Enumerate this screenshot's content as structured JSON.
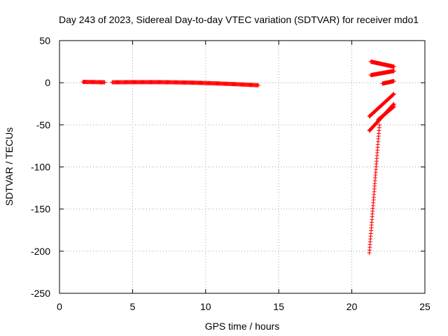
{
  "chart_data": {
    "type": "scatter",
    "title": "Day 243 of 2023, Sidereal Day-to-day VTEC variation (SDTVAR) for receiver mdo1",
    "xlabel": "GPS time / hours",
    "ylabel": "SDTVAR / TECUs",
    "xlim": [
      0,
      25
    ],
    "ylim": [
      -250,
      50
    ],
    "xticks": [
      0,
      5,
      10,
      15,
      20,
      25
    ],
    "yticks": [
      50,
      0,
      -50,
      -100,
      -150,
      -200,
      -250
    ],
    "grid": true,
    "marker": "+",
    "color": "#ff0000",
    "series": [
      {
        "name": "SDTVAR",
        "segments": [
          {
            "x0": 1.6,
            "x1": 3.1,
            "y0": 1.0,
            "y1": 0.5,
            "step": 0.05
          },
          {
            "x0": 3.6,
            "x1": 13.6,
            "y0": 0.5,
            "y1": -3.0,
            "mid": 1.5,
            "step": 0.05
          },
          {
            "x0": 21.3,
            "x1": 22.9,
            "y0": 25.0,
            "y1": 19.0,
            "step": 0.03
          },
          {
            "x0": 21.3,
            "x1": 22.9,
            "y0": 9.0,
            "y1": 14.0,
            "step": 0.03
          },
          {
            "x0": 22.1,
            "x1": 22.9,
            "y0": -1.0,
            "y1": 2.0,
            "step": 0.03
          },
          {
            "x0": 21.2,
            "x1": 22.9,
            "y0": -40.0,
            "y1": -13.0,
            "step": 0.03
          },
          {
            "x0": 21.2,
            "x1": 22.9,
            "y0": -57.0,
            "y1": -25.0,
            "step": 0.03
          },
          {
            "x0": 21.8,
            "x1": 22.9,
            "y0": -44.0,
            "y1": -28.0,
            "step": 0.03
          },
          {
            "x0": 21.2,
            "x1": 21.9,
            "y0": -202.0,
            "y1": -48.0,
            "step": 0.015
          }
        ]
      }
    ]
  }
}
